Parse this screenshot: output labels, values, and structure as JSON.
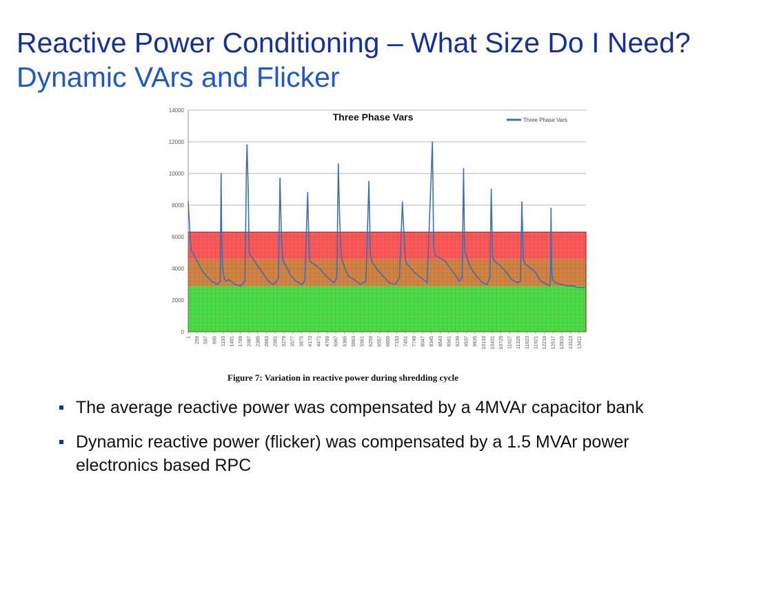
{
  "slide": {
    "title_line1": "Reactive Power Conditioning – What Size Do I Need?",
    "title_line2": "Dynamic VArs and Flicker",
    "caption": "Figure 7: Variation in reactive power during shredding cycle",
    "bullets": [
      "The average reactive power was compensated by a 4MVAr capacitor bank",
      "Dynamic reactive power (flicker) was compensated by a 1.5 MVAr power electronics based RPC"
    ]
  },
  "colors": {
    "title1": "#14309a",
    "title2": "#1f57c8",
    "series": "#3d6fb3",
    "band_red": "#ff3b3b",
    "band_orange": "#c87020",
    "band_green": "#22dd22"
  },
  "chart_data": {
    "type": "line",
    "title": "Three Phase Vars",
    "legend": {
      "entry": "Three Phase Vars",
      "position": "top-right"
    },
    "ylim": [
      0,
      14000
    ],
    "yticks": [
      0,
      2000,
      4000,
      6000,
      8000,
      10000,
      12000,
      14000
    ],
    "xlim": [
      1,
      13650
    ],
    "xtick_labels": [
      "1",
      "299",
      "597",
      "895",
      "1193",
      "1491",
      "1789",
      "2087",
      "2385",
      "2683",
      "2981",
      "3279",
      "3577",
      "3875",
      "4173",
      "4471",
      "4769",
      "5067",
      "5365",
      "5663",
      "5961",
      "6259",
      "6557",
      "6855",
      "7153",
      "7451",
      "7749",
      "8047",
      "8345",
      "8643",
      "8941",
      "9239",
      "9537",
      "9835",
      "10133",
      "10431",
      "10729",
      "11027",
      "11325",
      "11623",
      "11921",
      "12219",
      "12517",
      "12815",
      "13113",
      "13411"
    ],
    "grid": "horizontal",
    "bands": [
      {
        "name": "green",
        "from": 0,
        "to": 2900
      },
      {
        "name": "orange",
        "from": 2900,
        "to": 4600
      },
      {
        "name": "red",
        "from": 4600,
        "to": 6300
      }
    ],
    "series": [
      {
        "name": "Three Phase Vars",
        "x": [
          1,
          60,
          100,
          180,
          300,
          500,
          700,
          800,
          1000,
          1100,
          1130,
          1150,
          1180,
          1230,
          1300,
          1400,
          1600,
          1800,
          1950,
          2000,
          2020,
          2060,
          2080,
          2100,
          2120,
          2140,
          2200,
          2300,
          2450,
          2600,
          2750,
          2900,
          3000,
          3100,
          3150,
          3200,
          3250,
          3280,
          3300,
          3350,
          3400,
          3500,
          3700,
          3900,
          4000,
          4100,
          4150,
          4170,
          4200,
          4300,
          4450,
          4600,
          4800,
          5000,
          5100,
          5150,
          5200,
          5250,
          5280,
          5300,
          5350,
          5400,
          5500,
          5700,
          5900,
          6100,
          6200,
          6250,
          6300,
          6350,
          6400,
          6500,
          6700,
          6900,
          7100,
          7250,
          7350,
          7420,
          7460,
          7500,
          7600,
          7800,
          8000,
          8200,
          8300,
          8380,
          8400,
          8420,
          8450,
          8500,
          8600,
          8800,
          9000,
          9200,
          9300,
          9400,
          9450,
          9480,
          9500,
          9550,
          9600,
          9700,
          9900,
          10100,
          10250,
          10350,
          10400,
          10430,
          10450,
          10500,
          10550,
          10700,
          10900,
          11100,
          11300,
          11400,
          11450,
          11500,
          11550,
          11700,
          11900,
          12100,
          12300,
          12400,
          12430,
          12450,
          12470,
          12500,
          12600,
          12800,
          13000,
          13200,
          13400,
          13600
        ],
        "values": [
          8200,
          6300,
          5200,
          4900,
          4500,
          3800,
          3400,
          3200,
          3000,
          3200,
          10000,
          6000,
          4000,
          3400,
          3200,
          3300,
          3000,
          2900,
          3200,
          10500,
          11800,
          9000,
          6400,
          5000,
          4900,
          4800,
          4700,
          4400,
          4000,
          3600,
          3200,
          3000,
          3100,
          3400,
          9700,
          6000,
          4600,
          4400,
          4300,
          4200,
          4000,
          3600,
          3200,
          3000,
          3200,
          8800,
          5000,
          4500,
          4400,
          4300,
          4100,
          3800,
          3400,
          3100,
          3400,
          10600,
          7000,
          5000,
          4500,
          4400,
          4200,
          3900,
          3500,
          3300,
          3000,
          3200,
          9500,
          5000,
          4400,
          4300,
          4200,
          3900,
          3500,
          3100,
          3000,
          3400,
          8200,
          5500,
          4500,
          4300,
          4100,
          3700,
          3400,
          3100,
          8000,
          12000,
          9000,
          5500,
          5000,
          4800,
          4700,
          4500,
          4000,
          3500,
          3200,
          3400,
          10300,
          6000,
          5000,
          4800,
          4500,
          4000,
          3500,
          3100,
          3000,
          3400,
          9000,
          6000,
          4700,
          4500,
          4400,
          4200,
          3800,
          3300,
          3100,
          3200,
          8200,
          4600,
          4300,
          4100,
          3800,
          3200,
          3000,
          2900,
          3100,
          7800,
          4000,
          3300,
          3100,
          3000,
          2900,
          2900,
          2800,
          2800
        ]
      }
    ]
  }
}
